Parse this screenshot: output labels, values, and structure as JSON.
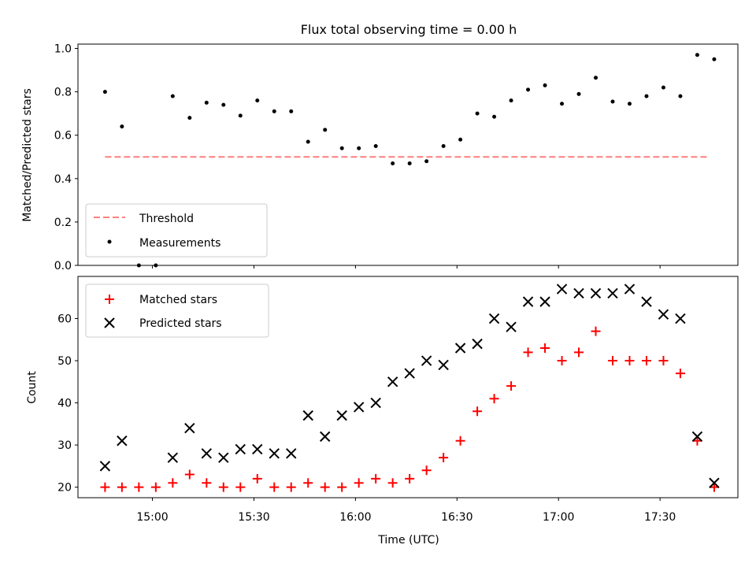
{
  "title": "Flux total observing time = 0.00 h",
  "chart_data": [
    {
      "type": "scatter",
      "panel": "top",
      "title": "Flux total observing time = 0.00 h",
      "xlabel": "",
      "ylabel": "Matched/Predicted stars",
      "x_range": [
        "14:38",
        "17:53"
      ],
      "ylim": [
        0.0,
        1.02
      ],
      "yticks": [
        0.0,
        0.2,
        0.4,
        0.6,
        0.8,
        1.0
      ],
      "ytick_labels": [
        "0.0",
        "0.2",
        "0.4",
        "0.6",
        "0.8",
        "1.0"
      ],
      "grid": false,
      "legend": {
        "placement": "lower-left",
        "entries": [
          "Threshold",
          "Measurements"
        ]
      },
      "threshold": {
        "name": "Threshold",
        "value": 0.5,
        "from": "14:46",
        "to": "17:44",
        "color": "#ff7f7f",
        "style": "dashed"
      },
      "series": [
        {
          "name": "Measurements",
          "color": "#000000",
          "marker": "dot",
          "x": [
            "14:46",
            "14:51",
            "14:56",
            "15:01",
            "15:06",
            "15:11",
            "15:16",
            "15:21",
            "15:26",
            "15:31",
            "15:36",
            "15:41",
            "15:46",
            "15:51",
            "15:56",
            "16:01",
            "16:06",
            "16:11",
            "16:16",
            "16:21",
            "16:26",
            "16:31",
            "16:36",
            "16:41",
            "16:46",
            "16:51",
            "16:56",
            "17:01",
            "17:06",
            "17:11",
            "17:16",
            "17:21",
            "17:26",
            "17:31",
            "17:36",
            "17:41",
            "17:46"
          ],
          "y": [
            0.8,
            0.64,
            0.0,
            0.0,
            0.78,
            0.68,
            0.75,
            0.74,
            0.69,
            0.76,
            0.71,
            0.71,
            0.57,
            0.625,
            0.54,
            0.54,
            0.55,
            0.47,
            0.47,
            0.48,
            0.55,
            0.58,
            0.7,
            0.685,
            0.76,
            0.81,
            0.83,
            0.745,
            0.79,
            0.865,
            0.755,
            0.745,
            0.78,
            0.82,
            0.78,
            0.97,
            0.95
          ]
        }
      ]
    },
    {
      "type": "scatter",
      "panel": "bottom",
      "xlabel": "Time (UTC)",
      "ylabel": "Count",
      "x_range": [
        "14:38",
        "17:53"
      ],
      "xticks": [
        "15:00",
        "15:30",
        "16:00",
        "16:30",
        "17:00",
        "17:30"
      ],
      "ylim": [
        17.5,
        70.0
      ],
      "yticks": [
        20,
        30,
        40,
        50,
        60
      ],
      "ytick_labels": [
        "20",
        "30",
        "40",
        "50",
        "60"
      ],
      "grid": false,
      "legend": {
        "placement": "top-left",
        "entries": [
          "Matched stars",
          "Predicted stars"
        ]
      },
      "x": [
        "14:46",
        "14:51",
        "14:56",
        "15:01",
        "15:06",
        "15:11",
        "15:16",
        "15:21",
        "15:26",
        "15:31",
        "15:36",
        "15:41",
        "15:46",
        "15:51",
        "15:56",
        "16:01",
        "16:06",
        "16:11",
        "16:16",
        "16:21",
        "16:26",
        "16:31",
        "16:36",
        "16:41",
        "16:46",
        "16:51",
        "16:56",
        "17:01",
        "17:06",
        "17:11",
        "17:16",
        "17:21",
        "17:26",
        "17:31",
        "17:36",
        "17:41",
        "17:46"
      ],
      "series": [
        {
          "name": "Matched stars",
          "color": "#ff0000",
          "marker": "plus",
          "y": [
            20,
            20,
            20,
            20,
            21,
            23,
            21,
            20,
            20,
            22,
            20,
            20,
            21,
            20,
            20,
            21,
            22,
            21,
            22,
            24,
            27,
            31,
            38,
            41,
            44,
            52,
            53,
            50,
            52,
            57,
            50,
            50,
            50,
            50,
            47,
            31,
            20
          ]
        },
        {
          "name": "Predicted stars",
          "color": "#000000",
          "marker": "x",
          "y": [
            25,
            31,
            null,
            null,
            27,
            34,
            28,
            27,
            29,
            29,
            28,
            28,
            37,
            32,
            37,
            39,
            40,
            45,
            47,
            50,
            49,
            53,
            54,
            60,
            58,
            64,
            64,
            67,
            66,
            66,
            66,
            67,
            64,
            61,
            60,
            32,
            21
          ]
        }
      ]
    }
  ]
}
